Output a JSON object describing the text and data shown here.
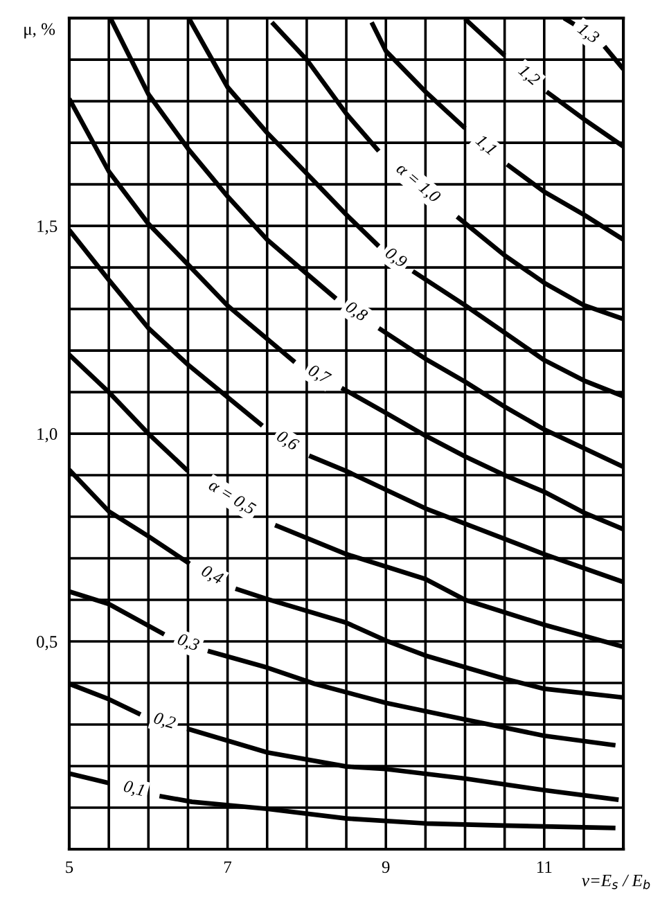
{
  "chart_data": {
    "type": "line",
    "xlabel": "ν=E$_{s}$ / E$_{b}$",
    "ylabel": "μ, %",
    "xlim": [
      5,
      12
    ],
    "ylim": [
      0,
      2.0
    ],
    "xticks": [
      5,
      {
        "value": 5.5,
        "label": null
      },
      {
        "value": 6,
        "label": null
      },
      {
        "value": 6.5,
        "label": null
      },
      7,
      {
        "value": 7.5,
        "label": null
      },
      {
        "value": 8,
        "label": null
      },
      {
        "value": 8.5,
        "label": null
      },
      9,
      {
        "value": 9.5,
        "label": null
      },
      {
        "value": 10,
        "label": null
      },
      {
        "value": 10.5,
        "label": null
      },
      11,
      {
        "value": 11.5,
        "label": null
      },
      {
        "value": 12,
        "label": null
      }
    ],
    "yticks": [
      {
        "value": 0.1,
        "label": null
      },
      {
        "value": 0.2,
        "label": null
      },
      {
        "value": 0.3,
        "label": null
      },
      {
        "value": 0.4,
        "label": null
      },
      {
        "value": 0.5,
        "label": "0,5"
      },
      {
        "value": 0.6,
        "label": null
      },
      {
        "value": 0.7,
        "label": null
      },
      {
        "value": 0.8,
        "label": null
      },
      {
        "value": 0.9,
        "label": null
      },
      {
        "value": 1.0,
        "label": "1,0"
      },
      {
        "value": 1.1,
        "label": null
      },
      {
        "value": 1.2,
        "label": null
      },
      {
        "value": 1.3,
        "label": null
      },
      {
        "value": 1.4,
        "label": null
      },
      {
        "value": 1.5,
        "label": "1,5"
      },
      {
        "value": 1.6,
        "label": null
      },
      {
        "value": 1.7,
        "label": null
      },
      {
        "value": 1.8,
        "label": null
      },
      {
        "value": 1.9,
        "label": null
      }
    ],
    "grid": true,
    "legend": false,
    "marker": "none",
    "line_style": "solid",
    "series": [
      {
        "name": "0,1",
        "color": "#000000",
        "x": [
          5,
          5.5,
          5.82,
          6.14,
          6.55,
          7.5,
          8.5,
          9.5,
          10.5,
          11.9
        ],
        "values": [
          0.182,
          0.159,
          null,
          0.128,
          0.114,
          0.097,
          0.074,
          0.062,
          0.057,
          0.051
        ]
      },
      {
        "name": "0,2",
        "color": "#000000",
        "x": [
          5,
          5.5,
          5.9,
          6.2,
          6.49,
          7.5,
          8.5,
          9,
          10,
          11,
          11.94
        ],
        "values": [
          0.398,
          0.361,
          0.324,
          null,
          0.29,
          0.233,
          0.199,
          0.193,
          0.17,
          0.142,
          0.119
        ]
      },
      {
        "name": "0,3",
        "color": "#000000",
        "x": [
          5,
          5.5,
          6.2,
          6.5,
          6.75,
          7.5,
          8.1,
          9,
          10,
          11,
          11.9
        ],
        "values": [
          0.62,
          0.59,
          0.517,
          null,
          0.477,
          0.437,
          0.398,
          0.352,
          0.312,
          0.273,
          0.25
        ]
      },
      {
        "name": "0,4",
        "color": "#000000",
        "x": [
          5,
          5.5,
          6,
          6.52,
          6.8,
          7.1,
          7.5,
          8.5,
          9,
          9.5,
          10.5,
          11,
          12
        ],
        "values": [
          0.913,
          0.813,
          0.753,
          0.687,
          null,
          0.627,
          0.602,
          0.545,
          0.502,
          0.466,
          0.41,
          0.386,
          0.365
        ]
      },
      {
        "name": "α = 0,5",
        "color": "#000000",
        "x": [
          5,
          5.5,
          6,
          6.5,
          7.05,
          7.6,
          8.5,
          9.5,
          10,
          11,
          12
        ],
        "values": [
          1.19,
          1.1,
          1.0,
          0.91,
          null,
          0.78,
          0.71,
          0.65,
          0.6,
          0.54,
          0.487
        ]
      },
      {
        "name": "0,6",
        "color": "#000000",
        "x": [
          5,
          5.5,
          6,
          6.5,
          7.44,
          7.75,
          8.03,
          8.5,
          9.5,
          11,
          12
        ],
        "values": [
          1.49,
          1.37,
          1.254,
          1.166,
          1.019,
          null,
          0.947,
          0.91,
          0.82,
          0.71,
          0.643
        ]
      },
      {
        "name": "0,7",
        "color": "#000000",
        "x": [
          5,
          5.5,
          6,
          6.5,
          7,
          7.85,
          8.15,
          8.44,
          9,
          9.5,
          10,
          10.5,
          11,
          11.5,
          12
        ],
        "values": [
          1.806,
          1.631,
          1.505,
          1.407,
          1.308,
          1.172,
          null,
          1.11,
          1.05,
          0.995,
          0.945,
          0.9,
          0.86,
          0.81,
          0.77
        ]
      },
      {
        "name": "0,8",
        "color": "#000000",
        "x": [
          5.52,
          6,
          6.5,
          7,
          7.5,
          8,
          8.37,
          8.62,
          8.91,
          9.5,
          10,
          10.5,
          11,
          11.5,
          12
        ],
        "values": [
          2.0,
          1.817,
          1.686,
          1.571,
          1.467,
          1.385,
          1.325,
          null,
          1.254,
          1.18,
          1.125,
          1.065,
          1.01,
          0.965,
          0.92
        ]
      },
      {
        "name": "0,9",
        "color": "#000000",
        "x": [
          6.51,
          7,
          7.5,
          8,
          8.5,
          8.91,
          9.12,
          9.34,
          10,
          10.5,
          11,
          11.5,
          12
        ],
        "values": [
          2.0,
          1.834,
          1.724,
          1.626,
          1.527,
          1.451,
          null,
          1.391,
          1.309,
          1.243,
          1.177,
          1.128,
          1.09
        ]
      },
      {
        "name": "α = 1,0",
        "color": "#000000",
        "x": [
          7.56,
          8,
          8.5,
          8.91,
          9.4,
          9.9,
          10.5,
          11,
          11.5,
          12
        ],
        "values": [
          1.99,
          1.9,
          1.77,
          1.68,
          null,
          1.522,
          1.429,
          1.363,
          1.309,
          1.276
        ]
      },
      {
        "name": "1,1",
        "color": "#000000",
        "x": [
          8.82,
          9,
          9.5,
          10,
          10.26,
          10.53,
          11,
          11.5,
          12
        ],
        "values": [
          1.99,
          1.921,
          1.823,
          1.735,
          null,
          1.648,
          1.582,
          1.527,
          1.467
        ]
      },
      {
        "name": "1,2",
        "color": "#000000",
        "x": [
          10,
          10.5,
          10.8,
          11.03,
          11.5,
          12
        ],
        "values": [
          1.998,
          1.91,
          null,
          1.823,
          1.757,
          1.691
        ]
      },
      {
        "name": "1,3",
        "color": "#000000",
        "x": [
          11.25,
          11.38,
          11.55,
          11.76,
          12
        ],
        "values": [
          2.0,
          1.985,
          null,
          1.932,
          1.877
        ]
      }
    ]
  }
}
